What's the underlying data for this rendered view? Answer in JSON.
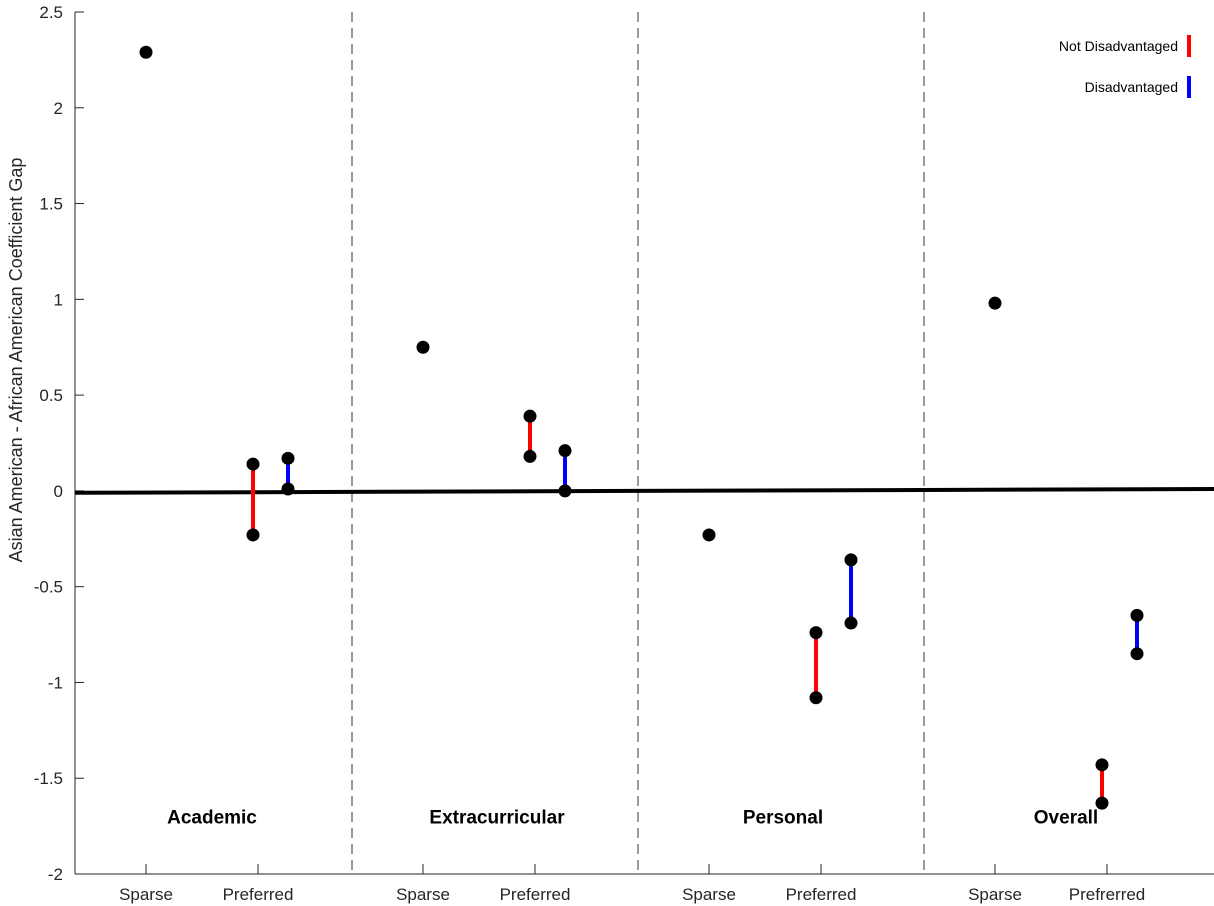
{
  "chart_data": {
    "type": "scatter",
    "ylabel": "Asian American - African American Coefficient Gap",
    "ylim": [
      -2,
      2.5
    ],
    "yticks": [
      2.5,
      2,
      1.5,
      1,
      0.5,
      0,
      -0.5,
      -1,
      -1.5,
      -2
    ],
    "ytick_labels": [
      "2.5",
      "2",
      "1.5",
      "1",
      "0.5",
      "0",
      "-0.5",
      "-1",
      "-1.5",
      "-2"
    ],
    "grid": false,
    "legend_position": "top-right",
    "legend": [
      {
        "label": "Not Disadvantaged",
        "color": "#ff0000"
      },
      {
        "label": "Disadvantaged",
        "color": "#0000ff"
      }
    ],
    "zero_line": {
      "y_start": -0.01,
      "y_end": 0.01
    },
    "groups": [
      {
        "name": "Academic",
        "tick_labels": [
          "Sparse",
          "Preferred"
        ],
        "sparse": 2.29,
        "not_disadvantaged": [
          0.14,
          -0.23
        ],
        "disadvantaged": [
          0.17,
          0.01
        ]
      },
      {
        "name": "Extracurricular",
        "tick_labels": [
          "Sparse",
          "Preferred"
        ],
        "sparse": 0.75,
        "not_disadvantaged": [
          0.39,
          0.18
        ],
        "disadvantaged": [
          0.21,
          0.0
        ]
      },
      {
        "name": "Personal",
        "tick_labels": [
          "Sparse",
          "Preferred"
        ],
        "sparse": -0.23,
        "not_disadvantaged": [
          -0.74,
          -1.08
        ],
        "disadvantaged": [
          -0.36,
          -0.69
        ]
      },
      {
        "name": "Overall",
        "tick_labels": [
          "Sparse",
          "Prefrerred"
        ],
        "sparse": 0.98,
        "not_disadvantaged": [
          -1.43,
          -1.63
        ],
        "disadvantaged": [
          -0.65,
          -0.85
        ]
      }
    ]
  }
}
